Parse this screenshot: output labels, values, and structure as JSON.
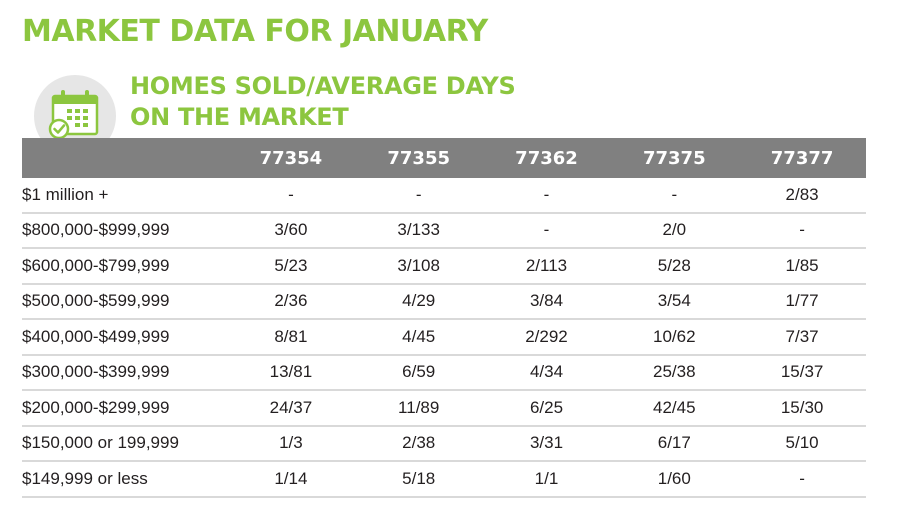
{
  "title": "MARKET DATA FOR JANUARY",
  "subtitle": {
    "line1": "HOMES SOLD/AVERAGE DAYS",
    "line2": "ON THE MARKET"
  },
  "icon": "calendar-check-icon",
  "colors": {
    "accent": "#8cc63f",
    "header_bg": "#808080",
    "icon_circle": "#e6e6e6",
    "row_divider": "#d9d9d9"
  },
  "table": {
    "label_header": "",
    "columns": [
      "77354",
      "77355",
      "77362",
      "77375",
      "77377"
    ],
    "rows": [
      {
        "label": "$1 million +",
        "values": [
          "-",
          "-",
          "-",
          "-",
          "2/83"
        ]
      },
      {
        "label": "$800,000-$999,999",
        "values": [
          "3/60",
          "3/133",
          "-",
          "2/0",
          "-"
        ]
      },
      {
        "label": "$600,000-$799,999",
        "values": [
          "5/23",
          "3/108",
          "2/113",
          "5/28",
          "1/85"
        ]
      },
      {
        "label": "$500,000-$599,999",
        "values": [
          "2/36",
          "4/29",
          "3/84",
          "3/54",
          "1/77"
        ]
      },
      {
        "label": "$400,000-$499,999",
        "values": [
          "8/81",
          "4/45",
          "2/292",
          "10/62",
          "7/37"
        ]
      },
      {
        "label": "$300,000-$399,999",
        "values": [
          "13/81",
          "6/59",
          "4/34",
          "25/38",
          "15/37"
        ]
      },
      {
        "label": "$200,000-$299,999",
        "values": [
          "24/37",
          "11/89",
          "6/25",
          "42/45",
          "15/30"
        ]
      },
      {
        "label": "$150,000 or 199,999",
        "values": [
          "1/3",
          "2/38",
          "3/31",
          "6/17",
          "5/10"
        ]
      },
      {
        "label": "$149,999 or less",
        "values": [
          "1/14",
          "5/18",
          "1/1",
          "1/60",
          "-"
        ]
      }
    ]
  }
}
